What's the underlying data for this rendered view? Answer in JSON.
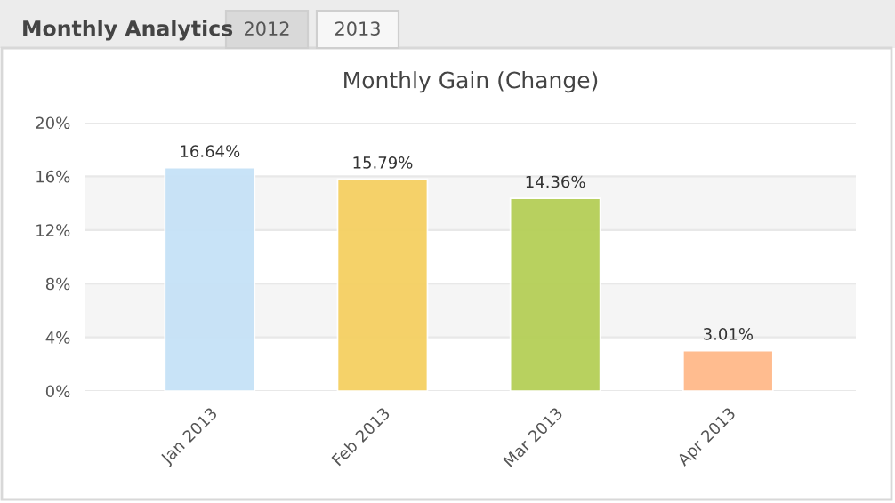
{
  "chart_data": {
    "type": "bar",
    "title": "Monthly Gain (Change)",
    "categories": [
      "Jan 2013",
      "Feb 2013",
      "Mar 2013",
      "Apr 2013"
    ],
    "values": [
      16.64,
      15.79,
      14.36,
      3.01
    ],
    "colors": [
      "#c6e2f7",
      "#f5d062",
      "#b5cf57",
      "#ffb98a"
    ],
    "value_labels": [
      "16.64%",
      "15.79%",
      "14.36%",
      "3.01%"
    ],
    "ylim": [
      0,
      20
    ],
    "yticks": [
      {
        "value": 0,
        "label": "0%"
      },
      {
        "value": 4,
        "label": "4%"
      },
      {
        "value": 8,
        "label": "8%"
      },
      {
        "value": 12,
        "label": "12%"
      },
      {
        "value": 16,
        "label": "16%"
      },
      {
        "value": 20,
        "label": "20%"
      }
    ],
    "grid": "y",
    "bands": [
      {
        "axis": "y",
        "from": 4,
        "to": 8,
        "color": "#f5f5f5"
      },
      {
        "axis": "y",
        "from": 12,
        "to": 16,
        "color": "#f5f5f5"
      }
    ],
    "annotations": [
      "Monthly Analytics",
      "2012",
      "2013"
    ]
  }
}
